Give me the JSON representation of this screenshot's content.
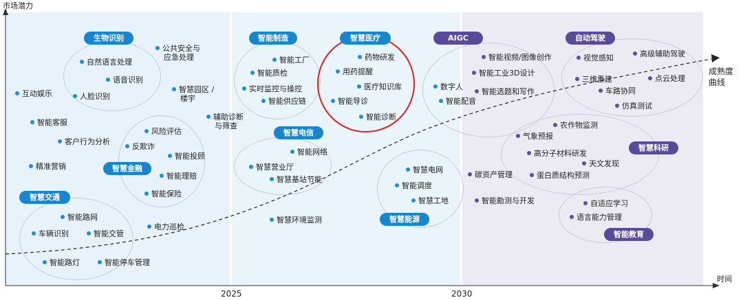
{
  "axes": {
    "y_label": "市场潜力",
    "x_label": "时间"
  },
  "years": [
    "2025",
    "2030"
  ],
  "maturity_label": [
    "成熟度",
    "曲线"
  ],
  "groups": {
    "bio": "生物识别",
    "finance": "智慧金融",
    "transport": "智慧交通",
    "manufacturing": "智能制造",
    "telecom": "智慧电信",
    "medical": "智慧医疗",
    "energy": "智慧能源",
    "aigc": "AIGC",
    "driving": "自动驾驶",
    "science": "智慧科研",
    "education": "智能教育"
  },
  "items": {
    "i1": "自然语言处理",
    "i2": "语音识别",
    "i3": "人脸识别",
    "i4": "公共安全与",
    "i4b": "应急处理",
    "i5": "互动娱乐",
    "i6": "智慧园区 /",
    "i6b": "楼宇",
    "i7": "辅助诊断",
    "i7b": "与筛查",
    "i8": "智能客服",
    "i9": "客户行为分析",
    "i10": "精准营销",
    "i11": "风险评估",
    "i12": "反欺诈",
    "i13": "智能投顾",
    "i14": "智能理赔",
    "i15": "智能保险",
    "i16": "智能路网",
    "i17": "车辆识别",
    "i18": "智能交管",
    "i19": "电力巡检",
    "i20": "智能路灯",
    "i21": "智能停车管理",
    "i22": "智能工厂",
    "i23": "智能质检",
    "i24": "实时监控与操控",
    "i25": "智能供应链",
    "i26": "智能网络",
    "i27": "智慧营业厅",
    "i28": "智慧基站节能",
    "i29": "智慧环境监测",
    "i30": "药物研发",
    "i31": "用药提醒",
    "i32": "医疗知识库",
    "i33": "智能导诊",
    "i34": "智能诊断",
    "i35": "智慧电网",
    "i36": "智能调度",
    "i37": "智慧工地",
    "i38": "智能视频/图像创作",
    "i39": "智能工业3D设计",
    "i40": "数字人",
    "i41": "智能选题和写作",
    "i42": "智能配音",
    "i43": "碳资产管理",
    "i44": "智能勘测与开发",
    "i45": "视觉感知",
    "i46": "高级辅助驾驶",
    "i47": "三维重建",
    "i48": "点云处理",
    "i49": "车路协同",
    "i50": "仿真测试",
    "i51": "农作物监测",
    "i52": "气象预报",
    "i53": "高分子材料研发",
    "i54": "天文发现",
    "i55": "蛋白质结构预测",
    "i56": "自适应学习",
    "i57": "语言能力管理"
  },
  "colors": {
    "blue_pill": "#1886cf",
    "purple_pill": "#5a4a9a",
    "highlight": "#e02020",
    "curve": "#222222"
  }
}
